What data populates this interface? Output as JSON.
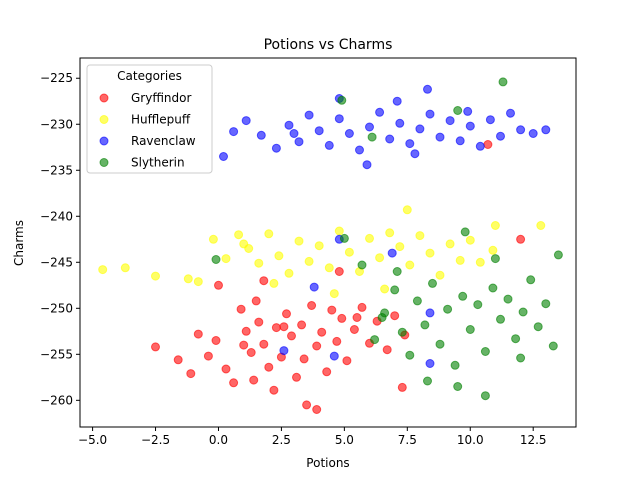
{
  "chart_data": {
    "type": "scatter",
    "title": "Potions vs Charms",
    "xlabel": "Potions",
    "ylabel": "Charms",
    "xlim": [
      -5.5,
      14.2
    ],
    "ylim": [
      -262.9,
      -222.8
    ],
    "xticks": [
      -5.0,
      -2.5,
      0.0,
      2.5,
      5.0,
      7.5,
      10.0,
      12.5
    ],
    "yticks": [
      -260,
      -255,
      -250,
      -245,
      -240,
      -235,
      -230,
      -225
    ],
    "grid": false,
    "legend": {
      "title": "Categories",
      "placement": "top-left"
    },
    "series": [
      {
        "name": "Gryffindor",
        "color": "#ff0000",
        "points": [
          [
            -2.5,
            -254.2
          ],
          [
            -1.6,
            -255.6
          ],
          [
            -1.1,
            -257.1
          ],
          [
            -0.8,
            -252.8
          ],
          [
            -0.4,
            -255.2
          ],
          [
            -0.1,
            -253.5
          ],
          [
            0.3,
            -256.6
          ],
          [
            0.6,
            -258.1
          ],
          [
            0.9,
            -250.1
          ],
          [
            1.1,
            -252.5
          ],
          [
            1.3,
            -254.8
          ],
          [
            1.5,
            -249.2
          ],
          [
            1.6,
            -251.5
          ],
          [
            1.8,
            -253.9
          ],
          [
            2.0,
            -256.4
          ],
          [
            2.2,
            -258.9
          ],
          [
            2.3,
            -252.1
          ],
          [
            2.5,
            -255.3
          ],
          [
            2.7,
            -250.6
          ],
          [
            2.9,
            -253.0
          ],
          [
            3.1,
            -257.5
          ],
          [
            3.3,
            -251.8
          ],
          [
            3.5,
            -260.5
          ],
          [
            3.7,
            -249.7
          ],
          [
            3.9,
            -254.1
          ],
          [
            4.1,
            -252.6
          ],
          [
            4.3,
            -256.9
          ],
          [
            4.5,
            -250.2
          ],
          [
            4.7,
            -253.6
          ],
          [
            4.9,
            -251.1
          ],
          [
            5.1,
            -255.7
          ],
          [
            5.4,
            -252.3
          ],
          [
            5.7,
            -249.9
          ],
          [
            6.0,
            -253.8
          ],
          [
            6.3,
            -251.4
          ],
          [
            6.7,
            -254.5
          ],
          [
            7.0,
            -250.8
          ],
          [
            7.4,
            -252.9
          ],
          [
            0.0,
            -247.5
          ],
          [
            3.9,
            -261.0
          ],
          [
            1.8,
            -247.0
          ],
          [
            4.8,
            -246.0
          ],
          [
            7.3,
            -258.6
          ],
          [
            10.7,
            -232.2
          ],
          [
            12.0,
            -242.5
          ],
          [
            1.0,
            -254.0
          ],
          [
            2.6,
            -252.0
          ],
          [
            3.4,
            -255.5
          ],
          [
            5.5,
            -251.0
          ],
          [
            1.4,
            -257.8
          ]
        ]
      },
      {
        "name": "Hufflepuff",
        "color": "#ffff00",
        "points": [
          [
            -4.6,
            -245.8
          ],
          [
            -3.7,
            -245.6
          ],
          [
            -2.5,
            -246.5
          ],
          [
            -1.2,
            -246.8
          ],
          [
            -0.8,
            -247.1
          ],
          [
            0.3,
            -244.6
          ],
          [
            0.8,
            -242.0
          ],
          [
            1.2,
            -243.5
          ],
          [
            1.6,
            -245.1
          ],
          [
            2.0,
            -241.9
          ],
          [
            2.4,
            -244.3
          ],
          [
            2.8,
            -246.2
          ],
          [
            3.2,
            -242.7
          ],
          [
            3.6,
            -244.9
          ],
          [
            4.0,
            -243.2
          ],
          [
            4.4,
            -245.6
          ],
          [
            4.8,
            -241.6
          ],
          [
            5.2,
            -243.9
          ],
          [
            5.6,
            -246.0
          ],
          [
            6.0,
            -242.4
          ],
          [
            6.4,
            -244.5
          ],
          [
            6.8,
            -241.8
          ],
          [
            7.2,
            -243.3
          ],
          [
            7.6,
            -245.3
          ],
          [
            8.0,
            -242.1
          ],
          [
            8.4,
            -244.0
          ],
          [
            8.8,
            -246.4
          ],
          [
            9.2,
            -243.0
          ],
          [
            9.6,
            -244.8
          ],
          [
            10.0,
            -242.6
          ],
          [
            10.4,
            -245.0
          ],
          [
            10.9,
            -243.7
          ],
          [
            11.0,
            -241.0
          ],
          [
            12.8,
            -241.0
          ],
          [
            7.5,
            -239.3
          ],
          [
            -0.2,
            -242.5
          ],
          [
            2.2,
            -247.3
          ],
          [
            4.6,
            -248.4
          ],
          [
            6.6,
            -247.9
          ],
          [
            1.0,
            -243.0
          ]
        ]
      },
      {
        "name": "Ravenclaw",
        "color": "#0000ff",
        "points": [
          [
            0.2,
            -233.5
          ],
          [
            0.6,
            -230.8
          ],
          [
            1.1,
            -229.6
          ],
          [
            1.7,
            -231.2
          ],
          [
            2.3,
            -232.6
          ],
          [
            2.8,
            -230.1
          ],
          [
            3.2,
            -231.9
          ],
          [
            3.6,
            -229.0
          ],
          [
            4.0,
            -230.7
          ],
          [
            4.4,
            -232.3
          ],
          [
            4.8,
            -229.4
          ],
          [
            5.2,
            -231.0
          ],
          [
            5.6,
            -232.8
          ],
          [
            6.0,
            -230.3
          ],
          [
            6.4,
            -228.7
          ],
          [
            6.8,
            -231.6
          ],
          [
            7.2,
            -229.9
          ],
          [
            7.6,
            -232.1
          ],
          [
            8.0,
            -230.5
          ],
          [
            8.4,
            -228.9
          ],
          [
            8.8,
            -231.4
          ],
          [
            9.2,
            -229.6
          ],
          [
            9.6,
            -231.8
          ],
          [
            10.0,
            -230.2
          ],
          [
            10.4,
            -232.4
          ],
          [
            10.8,
            -229.5
          ],
          [
            11.2,
            -231.3
          ],
          [
            11.6,
            -228.8
          ],
          [
            12.0,
            -230.6
          ],
          [
            12.5,
            -231.0
          ],
          [
            13.0,
            -230.6
          ],
          [
            4.8,
            -227.2
          ],
          [
            8.3,
            -226.2
          ],
          [
            7.1,
            -227.5
          ],
          [
            5.9,
            -234.4
          ],
          [
            2.6,
            -254.6
          ],
          [
            3.8,
            -247.7
          ],
          [
            6.9,
            -244.0
          ],
          [
            8.4,
            -256.0
          ],
          [
            4.6,
            -255.2
          ],
          [
            4.8,
            -242.5
          ],
          [
            8.4,
            -250.5
          ],
          [
            3.0,
            -231.0
          ],
          [
            7.8,
            -233.2
          ],
          [
            9.9,
            -228.6
          ]
        ]
      },
      {
        "name": "Slytherin",
        "color": "#008000",
        "points": [
          [
            -0.1,
            -244.7
          ],
          [
            4.9,
            -227.4
          ],
          [
            5.0,
            -242.4
          ],
          [
            6.1,
            -231.4
          ],
          [
            9.5,
            -228.5
          ],
          [
            9.8,
            -241.7
          ],
          [
            11.3,
            -225.4
          ],
          [
            5.7,
            -245.3
          ],
          [
            6.2,
            -253.4
          ],
          [
            6.6,
            -250.5
          ],
          [
            7.0,
            -248.0
          ],
          [
            7.3,
            -252.6
          ],
          [
            7.6,
            -255.1
          ],
          [
            7.9,
            -249.2
          ],
          [
            8.2,
            -251.8
          ],
          [
            8.5,
            -247.3
          ],
          [
            8.8,
            -253.9
          ],
          [
            9.1,
            -250.1
          ],
          [
            9.4,
            -256.2
          ],
          [
            9.7,
            -248.7
          ],
          [
            10.0,
            -252.3
          ],
          [
            10.3,
            -249.6
          ],
          [
            10.6,
            -254.7
          ],
          [
            10.9,
            -247.8
          ],
          [
            11.2,
            -251.2
          ],
          [
            11.5,
            -249.0
          ],
          [
            11.8,
            -253.3
          ],
          [
            12.1,
            -250.4
          ],
          [
            12.4,
            -246.9
          ],
          [
            12.7,
            -252.0
          ],
          [
            13.0,
            -249.5
          ],
          [
            13.3,
            -254.1
          ],
          [
            13.5,
            -244.2
          ],
          [
            10.6,
            -259.5
          ],
          [
            9.5,
            -258.5
          ],
          [
            8.3,
            -257.9
          ],
          [
            6.5,
            -251.0
          ],
          [
            12.0,
            -255.4
          ],
          [
            7.1,
            -246.0
          ],
          [
            11.0,
            -244.6
          ]
        ]
      }
    ]
  }
}
